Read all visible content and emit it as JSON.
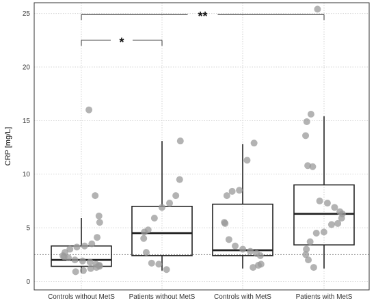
{
  "chart_data": {
    "type": "boxplot",
    "title": "",
    "xlabel": "",
    "ylabel": "CRP [mg/L]",
    "ylim": [
      -0.8,
      26
    ],
    "yticks": [
      0,
      5,
      10,
      15,
      20,
      25
    ],
    "grid": true,
    "reference_line_y": 2.5,
    "categories": [
      "Controls without MetS",
      "Patients without MetS",
      "Controls with MetS",
      "Patients with MetS"
    ],
    "boxes": [
      {
        "q1": 1.4,
        "median": 2.0,
        "q3": 3.3,
        "whisker_low": 0.8,
        "whisker_high": 5.9
      },
      {
        "q1": 2.4,
        "median": 4.5,
        "q3": 7.0,
        "whisker_low": 1.0,
        "whisker_high": 13.1
      },
      {
        "q1": 2.4,
        "median": 2.9,
        "q3": 7.2,
        "whisker_low": 1.2,
        "whisker_high": 12.8
      },
      {
        "q1": 3.4,
        "median": 6.3,
        "q3": 9.0,
        "whisker_low": 1.2,
        "whisker_high": 15.4
      }
    ],
    "points": [
      [
        16.0,
        8.0,
        6.1,
        5.5,
        4.1,
        3.5,
        3.3,
        3.2,
        3.0,
        2.7,
        2.4,
        2.3,
        2.2,
        2.0,
        1.9,
        1.8,
        1.6,
        1.5,
        1.4,
        1.3,
        1.2,
        1.0,
        0.9
      ],
      [
        13.1,
        9.5,
        8.0,
        7.3,
        6.9,
        5.9,
        4.8,
        4.6,
        4.0,
        2.7,
        1.7,
        1.6,
        1.1
      ],
      [
        12.9,
        11.3,
        8.5,
        8.4,
        8.0,
        5.5,
        5.4,
        3.9,
        3.3,
        3.0,
        2.8,
        2.6,
        2.4,
        1.6,
        1.5,
        1.3
      ],
      [
        25.4,
        15.6,
        14.9,
        13.6,
        10.8,
        10.7,
        7.5,
        7.3,
        6.9,
        6.5,
        6.3,
        5.9,
        5.4,
        5.3,
        4.6,
        4.5,
        3.7,
        3.0,
        2.5,
        2.0,
        1.3
      ]
    ],
    "significance": [
      {
        "from": 0,
        "to": 3,
        "y": 24.9,
        "label": "**"
      },
      {
        "from": 0,
        "to": 1,
        "y": 22.5,
        "label": "*"
      }
    ]
  }
}
